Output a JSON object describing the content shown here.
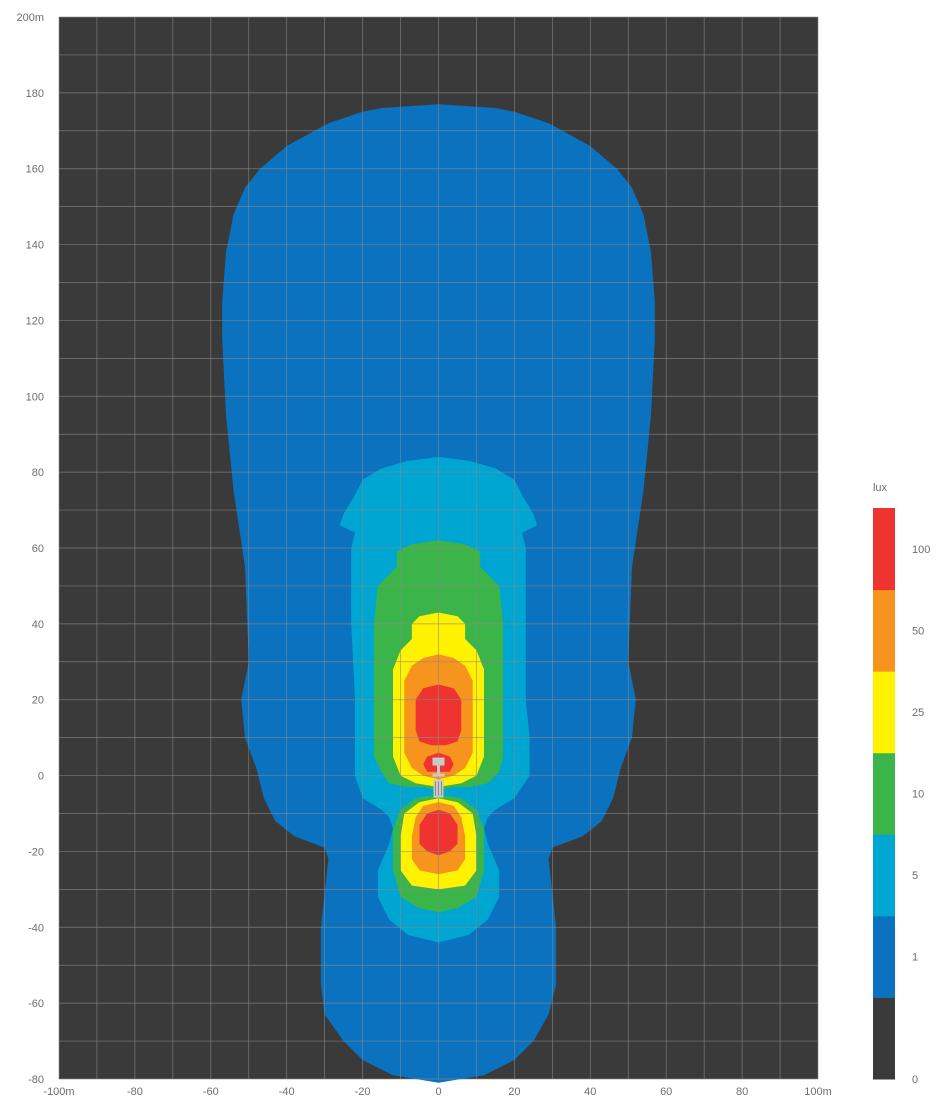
{
  "chart_data": {
    "type": "heatmap",
    "title": "",
    "x": {
      "min": -100,
      "max": 100,
      "step": 10,
      "tick_labels": [
        {
          "value": -100,
          "label": "-100m"
        },
        {
          "value": -80,
          "label": "-80"
        },
        {
          "value": -60,
          "label": "-60"
        },
        {
          "value": -40,
          "label": "-40"
        },
        {
          "value": -20,
          "label": "-20"
        },
        {
          "value": 0,
          "label": "0"
        },
        {
          "value": 20,
          "label": "20"
        },
        {
          "value": 40,
          "label": "40"
        },
        {
          "value": 60,
          "label": "60"
        },
        {
          "value": 80,
          "label": "80"
        },
        {
          "value": 100,
          "label": "100m"
        }
      ]
    },
    "y": {
      "min": -80,
      "max": 200,
      "step": 10,
      "tick_labels": [
        {
          "value": 200,
          "label": "200m"
        },
        {
          "value": 180,
          "label": "180"
        },
        {
          "value": 160,
          "label": "160"
        },
        {
          "value": 140,
          "label": "140"
        },
        {
          "value": 120,
          "label": "120"
        },
        {
          "value": 100,
          "label": "100"
        },
        {
          "value": 80,
          "label": "80"
        },
        {
          "value": 60,
          "label": "60"
        },
        {
          "value": 40,
          "label": "40"
        },
        {
          "value": 20,
          "label": "20"
        },
        {
          "value": 0,
          "label": "0"
        },
        {
          "value": -20,
          "label": "-20"
        },
        {
          "value": -40,
          "label": "-40"
        },
        {
          "value": -60,
          "label": "-60"
        },
        {
          "value": -80,
          "label": "-80"
        }
      ]
    },
    "grid": true,
    "background_color": "#3a3a3a",
    "grid_color": "#8a8a8a",
    "legend": {
      "title": "lux",
      "placement": "right",
      "tick_labels": [
        "0",
        "1",
        "5",
        "10",
        "25",
        "50",
        "100"
      ],
      "bands": [
        {
          "color": "#3a3a3a"
        },
        {
          "color": "#0a72bf"
        },
        {
          "color": "#00a6d2"
        },
        {
          "color": "#3bb54a"
        },
        {
          "color": "#fff200"
        },
        {
          "color": "#f7941d"
        },
        {
          "color": "#ee3330"
        }
      ]
    },
    "contours": [
      {
        "level": 1,
        "color": "#0a72bf",
        "polygons": [
          [
            [
              0,
              177
            ],
            [
              -15,
              176
            ],
            [
              -20,
              175
            ],
            [
              -29,
              172
            ],
            [
              -40,
              166
            ],
            [
              -47,
              160
            ],
            [
              -51,
              155
            ],
            [
              -54,
              148
            ],
            [
              -56,
              138
            ],
            [
              -57,
              125
            ],
            [
              -57,
              115
            ],
            [
              -56,
              95
            ],
            [
              -54,
              75
            ],
            [
              -51,
              55
            ],
            [
              -50,
              30
            ],
            [
              -52,
              20
            ],
            [
              -51,
              10
            ],
            [
              -48,
              2
            ],
            [
              -46,
              -6
            ],
            [
              -43,
              -12
            ],
            [
              -38,
              -16
            ],
            [
              -30,
              -19
            ],
            [
              -29,
              -22
            ],
            [
              -31,
              -40
            ],
            [
              -31,
              -55
            ],
            [
              -30,
              -63
            ],
            [
              -25,
              -70
            ],
            [
              -20,
              -75
            ],
            [
              -12,
              -79
            ],
            [
              0,
              -81
            ],
            [
              12,
              -79
            ],
            [
              20,
              -75
            ],
            [
              25,
              -70
            ],
            [
              29,
              -63
            ],
            [
              31,
              -55
            ],
            [
              31,
              -40
            ],
            [
              29,
              -22
            ],
            [
              30,
              -19
            ],
            [
              38,
              -16
            ],
            [
              43,
              -12
            ],
            [
              46,
              -6
            ],
            [
              48,
              2
            ],
            [
              51,
              10
            ],
            [
              52,
              20
            ],
            [
              50,
              30
            ],
            [
              51,
              55
            ],
            [
              54,
              75
            ],
            [
              56,
              95
            ],
            [
              57,
              115
            ],
            [
              57,
              125
            ],
            [
              56,
              138
            ],
            [
              54,
              148
            ],
            [
              51,
              155
            ],
            [
              47,
              160
            ],
            [
              40,
              166
            ],
            [
              29,
              172
            ],
            [
              20,
              175
            ],
            [
              15,
              176
            ]
          ]
        ]
      },
      {
        "level": 5,
        "color": "#00a6d2",
        "polygons": [
          [
            [
              0,
              84
            ],
            [
              -8,
              83
            ],
            [
              -15,
              81
            ],
            [
              -20,
              78
            ],
            [
              -22,
              74
            ],
            [
              -25,
              69
            ],
            [
              -26,
              66
            ],
            [
              -24,
              65
            ],
            [
              -22,
              64
            ],
            [
              -23,
              60
            ],
            [
              -23,
              52
            ],
            [
              -23,
              40
            ],
            [
              -22,
              20
            ],
            [
              -22,
              10
            ],
            [
              -22,
              0
            ],
            [
              -20,
              -6
            ],
            [
              -15,
              -9
            ],
            [
              -13,
              -11
            ],
            [
              -12,
              -14
            ],
            [
              -13,
              -18
            ],
            [
              -16,
              -25
            ],
            [
              -16,
              -32
            ],
            [
              -13,
              -38
            ],
            [
              -8,
              -42
            ],
            [
              0,
              -44
            ],
            [
              8,
              -42
            ],
            [
              13,
              -38
            ],
            [
              16,
              -32
            ],
            [
              16,
              -25
            ],
            [
              13,
              -18
            ],
            [
              12,
              -14
            ],
            [
              13,
              -11
            ],
            [
              15,
              -9
            ],
            [
              20,
              -6
            ],
            [
              24,
              0
            ],
            [
              24,
              10
            ],
            [
              23,
              20
            ],
            [
              23,
              40
            ],
            [
              23,
              52
            ],
            [
              23,
              60
            ],
            [
              22,
              64
            ],
            [
              24,
              65
            ],
            [
              26,
              66
            ],
            [
              25,
              69
            ],
            [
              22,
              74
            ],
            [
              20,
              78
            ],
            [
              15,
              81
            ],
            [
              8,
              83
            ]
          ]
        ]
      },
      {
        "level": 10,
        "color": "#3bb54a",
        "polygons": [
          [
            [
              0,
              62
            ],
            [
              -7,
              61
            ],
            [
              -11,
              59
            ],
            [
              -11,
              55
            ],
            [
              -16,
              50
            ],
            [
              -17,
              40
            ],
            [
              -17,
              20
            ],
            [
              -17,
              5
            ],
            [
              -15,
              1
            ],
            [
              -13,
              -2
            ],
            [
              -8,
              -3
            ],
            [
              -4,
              -3
            ],
            [
              0,
              -4
            ],
            [
              4,
              -3
            ],
            [
              8,
              -3
            ],
            [
              13,
              -2
            ],
            [
              16,
              1
            ],
            [
              17,
              5
            ],
            [
              17,
              20
            ],
            [
              17,
              40
            ],
            [
              16,
              50
            ],
            [
              11,
              55
            ],
            [
              11,
              59
            ],
            [
              7,
              61
            ]
          ],
          [
            [
              0,
              -5
            ],
            [
              -6,
              -6
            ],
            [
              -10,
              -9
            ],
            [
              -12,
              -14
            ],
            [
              -12,
              -25
            ],
            [
              -10,
              -32
            ],
            [
              -5,
              -35
            ],
            [
              0,
              -36
            ],
            [
              5,
              -35
            ],
            [
              10,
              -32
            ],
            [
              12,
              -25
            ],
            [
              12,
              -14
            ],
            [
              10,
              -9
            ],
            [
              6,
              -6
            ]
          ]
        ]
      },
      {
        "level": 25,
        "color": "#fff200",
        "polygons": [
          [
            [
              0,
              43
            ],
            [
              -5,
              42
            ],
            [
              -7,
              40
            ],
            [
              -7,
              36
            ],
            [
              -10,
              33
            ],
            [
              -12,
              28
            ],
            [
              -12,
              5
            ],
            [
              -10,
              0
            ],
            [
              -6,
              -2
            ],
            [
              0,
              -3
            ],
            [
              6,
              -2
            ],
            [
              10,
              0
            ],
            [
              12,
              5
            ],
            [
              12,
              28
            ],
            [
              10,
              33
            ],
            [
              7,
              36
            ],
            [
              7,
              40
            ],
            [
              5,
              42
            ]
          ],
          [
            [
              0,
              -6
            ],
            [
              -5,
              -7
            ],
            [
              -9,
              -10
            ],
            [
              -10,
              -16
            ],
            [
              -10,
              -25
            ],
            [
              -7,
              -29
            ],
            [
              0,
              -30
            ],
            [
              7,
              -29
            ],
            [
              10,
              -25
            ],
            [
              10,
              -16
            ],
            [
              9,
              -10
            ],
            [
              5,
              -7
            ]
          ]
        ]
      },
      {
        "level": 50,
        "color": "#f7941d",
        "polygons": [
          [
            [
              0,
              32
            ],
            [
              -4,
              31
            ],
            [
              -7,
              29
            ],
            [
              -9,
              25
            ],
            [
              -9,
              6
            ],
            [
              -7,
              2
            ],
            [
              -4,
              0
            ],
            [
              0,
              -1
            ],
            [
              4,
              0
            ],
            [
              7,
              2
            ],
            [
              9,
              6
            ],
            [
              9,
              25
            ],
            [
              7,
              29
            ],
            [
              4,
              31
            ]
          ],
          [
            [
              0,
              -7
            ],
            [
              -4,
              -8
            ],
            [
              -6,
              -11
            ],
            [
              -7,
              -16
            ],
            [
              -7,
              -22
            ],
            [
              -5,
              -25
            ],
            [
              0,
              -26
            ],
            [
              5,
              -25
            ],
            [
              7,
              -22
            ],
            [
              7,
              -16
            ],
            [
              6,
              -11
            ],
            [
              4,
              -8
            ]
          ]
        ]
      },
      {
        "level": 100,
        "color": "#ee3330",
        "polygons": [
          [
            [
              0,
              24
            ],
            [
              -4,
              23
            ],
            [
              -6,
              20
            ],
            [
              -6,
              12
            ],
            [
              -5,
              9
            ],
            [
              -2,
              8
            ],
            [
              0,
              8
            ],
            [
              2,
              8
            ],
            [
              5,
              9
            ],
            [
              6,
              12
            ],
            [
              6,
              20
            ],
            [
              4,
              23
            ]
          ],
          [
            [
              0,
              6
            ],
            [
              -3,
              5
            ],
            [
              -4,
              3
            ],
            [
              -3,
              1
            ],
            [
              0,
              1
            ],
            [
              3,
              1
            ],
            [
              4,
              3
            ],
            [
              3,
              5
            ]
          ],
          [
            [
              0,
              -9
            ],
            [
              -3,
              -10
            ],
            [
              -5,
              -13
            ],
            [
              -5,
              -18
            ],
            [
              -3,
              -20
            ],
            [
              0,
              -21
            ],
            [
              3,
              -20
            ],
            [
              5,
              -18
            ],
            [
              5,
              -13
            ],
            [
              3,
              -10
            ]
          ]
        ]
      }
    ],
    "luminaire": {
      "x": 0,
      "y": 0,
      "color": "#c9c9c9"
    }
  }
}
